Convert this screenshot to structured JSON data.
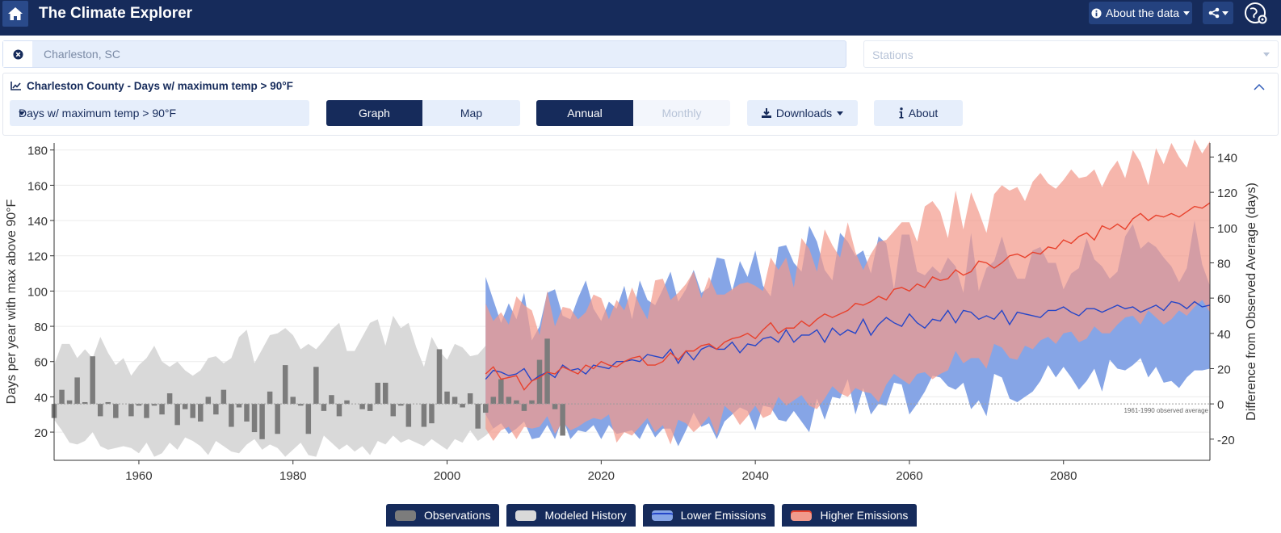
{
  "app": {
    "title": "The Climate Explorer",
    "about_data_label": "About the data"
  },
  "location": {
    "value": "Charleston, SC",
    "stations_placeholder": "Stations"
  },
  "panel": {
    "title": "Charleston County - Days w/ maximum temp > 90°F",
    "variable_selected": "Days w/ maximum temp > 90°F",
    "view_toggle": [
      {
        "label": "Graph",
        "active": true
      },
      {
        "label": "Map",
        "active": false
      }
    ],
    "period_toggle": [
      {
        "label": "Annual",
        "active": true
      },
      {
        "label": "Monthly",
        "disabled": true
      }
    ],
    "downloads_label": "Downloads",
    "about_label": "About"
  },
  "colors": {
    "navy": "#162b5b",
    "observations": "#7c7c7c",
    "modeled_history": "#d9d9d9",
    "lower_emissions": "#86a5e6",
    "higher_emissions": "#f29a8c",
    "lower_line": "#2546c8",
    "higher_line": "#e8412c"
  },
  "chart_data": {
    "type": "area",
    "ylabel": "Days per year with max above 90°F",
    "y2label": "Difference from Observed Average (days)",
    "xlim": [
      1949,
      2099
    ],
    "ylim": [
      4,
      184
    ],
    "y2lim": [
      -32,
      148
    ],
    "baseline": 36,
    "x_ticks": [
      1960,
      1980,
      2000,
      2020,
      2040,
      2060,
      2080
    ],
    "y_ticks": [
      20,
      40,
      60,
      80,
      100,
      120,
      140,
      160,
      180
    ],
    "y2_ticks": [
      -20,
      0,
      20,
      40,
      60,
      80,
      100,
      120,
      140
    ],
    "annotation": "1961-1990 observed average",
    "legend": [
      "Observations",
      "Modeled History",
      "Lower Emissions",
      "Higher Emissions"
    ],
    "observations": {
      "start_year": 1949,
      "values": [
        28,
        44,
        38,
        51,
        37,
        63,
        29,
        37,
        28,
        36,
        29,
        35,
        28,
        35,
        30,
        42,
        24,
        33,
        28,
        26,
        40,
        30,
        44,
        23,
        34,
        26,
        20,
        16,
        43,
        19,
        58,
        40,
        35,
        19,
        57,
        32,
        41,
        29,
        38,
        36,
        33,
        32,
        48,
        48,
        29,
        35,
        23,
        36,
        23,
        25,
        67,
        43,
        40,
        34,
        42,
        22,
        31,
        40,
        50,
        40,
        38,
        32,
        38,
        61,
        73,
        33,
        18
      ]
    },
    "modeled_history": {
      "start_year": 1949,
      "upper": [
        58,
        70,
        70,
        62,
        67,
        62,
        74,
        65,
        58,
        62,
        52,
        58,
        62,
        69,
        60,
        57,
        60,
        55,
        52,
        55,
        62,
        63,
        59,
        62,
        74,
        78,
        59,
        67,
        75,
        76,
        79,
        75,
        67,
        70,
        67,
        72,
        78,
        82,
        66,
        66,
        74,
        82,
        84,
        69,
        86,
        79,
        82,
        68,
        57,
        74,
        66,
        61,
        70,
        68,
        63,
        64,
        69,
        80
      ],
      "lower": [
        27,
        21,
        14,
        13,
        15,
        20,
        12,
        10,
        11,
        12,
        11,
        8,
        14,
        6,
        8,
        14,
        10,
        17,
        15,
        12,
        7,
        15,
        12,
        9,
        8,
        13,
        16,
        10,
        13,
        11,
        6,
        10,
        14,
        7,
        6,
        18,
        14,
        10,
        13,
        9,
        12,
        7,
        15,
        13,
        18,
        14,
        16,
        14,
        12,
        16,
        13,
        10,
        16,
        14,
        21,
        15,
        18,
        22
      ]
    },
    "lower_emissions": {
      "start_year": 2005,
      "upper": [
        108,
        95,
        82,
        93,
        84,
        99,
        72,
        80,
        99,
        101,
        86,
        84,
        96,
        106,
        90,
        83,
        94,
        90,
        103,
        84,
        106,
        95,
        92,
        101,
        111,
        94,
        101,
        112,
        99,
        102,
        119,
        118,
        100,
        117,
        108,
        123,
        103,
        97,
        125,
        126,
        116,
        111,
        137,
        128,
        112,
        106,
        133,
        128,
        120,
        123,
        110,
        131,
        127,
        101,
        132,
        132,
        111,
        109,
        114,
        110,
        119,
        114,
        99,
        133,
        100,
        113,
        117,
        131,
        116,
        107,
        107,
        123,
        125,
        116,
        116,
        101,
        110,
        113,
        130,
        118,
        114,
        107,
        111,
        131,
        138,
        124,
        128,
        125,
        119,
        114,
        105,
        113,
        140,
        115,
        103
      ],
      "lower": [
        30,
        22,
        25,
        19,
        22,
        26,
        16,
        17,
        24,
        16,
        28,
        16,
        21,
        20,
        24,
        16,
        24,
        19,
        20,
        21,
        16,
        25,
        17,
        22,
        22,
        12,
        21,
        31,
        23,
        25,
        16,
        26,
        30,
        34,
        32,
        21,
        35,
        34,
        27,
        26,
        32,
        26,
        20,
        39,
        27,
        40,
        39,
        50,
        30,
        45,
        30,
        36,
        35,
        48,
        47,
        30,
        36,
        43,
        52,
        51,
        46,
        44,
        48,
        33,
        38,
        29,
        53,
        51,
        39,
        37,
        40,
        43,
        49,
        58,
        51,
        57,
        51,
        44,
        49,
        56,
        43,
        61,
        56,
        55,
        58,
        62,
        51,
        57,
        48,
        49,
        45,
        51,
        55,
        55,
        56
      ],
      "line": [
        50,
        55,
        54,
        52,
        53,
        56,
        49,
        52,
        54,
        51,
        58,
        55,
        56,
        53,
        58,
        57,
        56,
        60,
        60,
        61,
        60,
        64,
        63,
        62,
        67,
        59,
        66,
        61,
        67,
        69,
        67,
        67,
        71,
        65,
        70,
        69,
        73,
        74,
        71,
        78,
        71,
        75,
        75,
        78,
        71,
        79,
        75,
        78,
        76,
        84,
        75,
        81,
        85,
        82,
        80,
        87,
        82,
        79,
        84,
        83,
        89,
        82,
        89,
        88,
        84,
        86,
        84,
        89,
        81,
        88,
        87,
        86,
        85,
        89,
        89,
        91,
        88,
        86,
        90,
        90,
        88,
        90,
        92,
        90,
        91,
        88,
        90,
        92,
        89,
        94,
        93,
        90,
        94,
        91,
        92
      ]
    },
    "higher_emissions": {
      "start_year": 2005,
      "upper": [
        93,
        83,
        88,
        81,
        97,
        92,
        89,
        75,
        100,
        80,
        91,
        90,
        84,
        88,
        98,
        96,
        84,
        95,
        89,
        102,
        92,
        84,
        106,
        107,
        95,
        99,
        104,
        111,
        96,
        108,
        98,
        98,
        101,
        104,
        105,
        103,
        100,
        119,
        112,
        119,
        102,
        130,
        124,
        111,
        135,
        126,
        119,
        139,
        122,
        112,
        121,
        128,
        129,
        134,
        139,
        139,
        128,
        148,
        151,
        145,
        130,
        157,
        135,
        156,
        145,
        133,
        155,
        160,
        157,
        159,
        151,
        162,
        167,
        161,
        158,
        163,
        169,
        164,
        165,
        169,
        159,
        168,
        174,
        164,
        180,
        173,
        160,
        181,
        172,
        184,
        176,
        170,
        186,
        178,
        185
      ],
      "lower": [
        22,
        15,
        21,
        23,
        16,
        23,
        22,
        23,
        29,
        19,
        26,
        21,
        23,
        26,
        28,
        27,
        30,
        14,
        20,
        18,
        23,
        28,
        20,
        24,
        13,
        27,
        25,
        20,
        24,
        29,
        18,
        35,
        31,
        24,
        29,
        35,
        28,
        30,
        40,
        35,
        38,
        41,
        35,
        33,
        39,
        46,
        42,
        40,
        45,
        43,
        42,
        37,
        47,
        53,
        50,
        47,
        53,
        54,
        50,
        53,
        55,
        66,
        59,
        62,
        62,
        56,
        70,
        68,
        62,
        61,
        69,
        67,
        72,
        74,
        70,
        76,
        77,
        71,
        73,
        80,
        76,
        76,
        81,
        85,
        86,
        81,
        89,
        85,
        81,
        84,
        89,
        86,
        91,
        95,
        88
      ],
      "line": [
        53,
        57,
        50,
        51,
        52,
        44,
        49,
        51,
        54,
        53,
        57,
        55,
        53,
        58,
        56,
        60,
        58,
        57,
        60,
        62,
        63,
        58,
        58,
        60,
        65,
        61,
        66,
        66,
        69,
        70,
        67,
        71,
        73,
        74,
        76,
        73,
        78,
        82,
        76,
        79,
        79,
        83,
        80,
        84,
        87,
        85,
        87,
        89,
        93,
        92,
        94,
        97,
        95,
        101,
        102,
        100,
        104,
        102,
        108,
        106,
        107,
        112,
        109,
        111,
        117,
        116,
        113,
        116,
        120,
        121,
        119,
        122,
        121,
        125,
        124,
        129,
        127,
        131,
        133,
        129,
        137,
        135,
        138,
        135,
        141,
        144,
        140,
        143,
        142,
        144,
        142,
        145,
        148,
        147,
        150
      ]
    }
  }
}
